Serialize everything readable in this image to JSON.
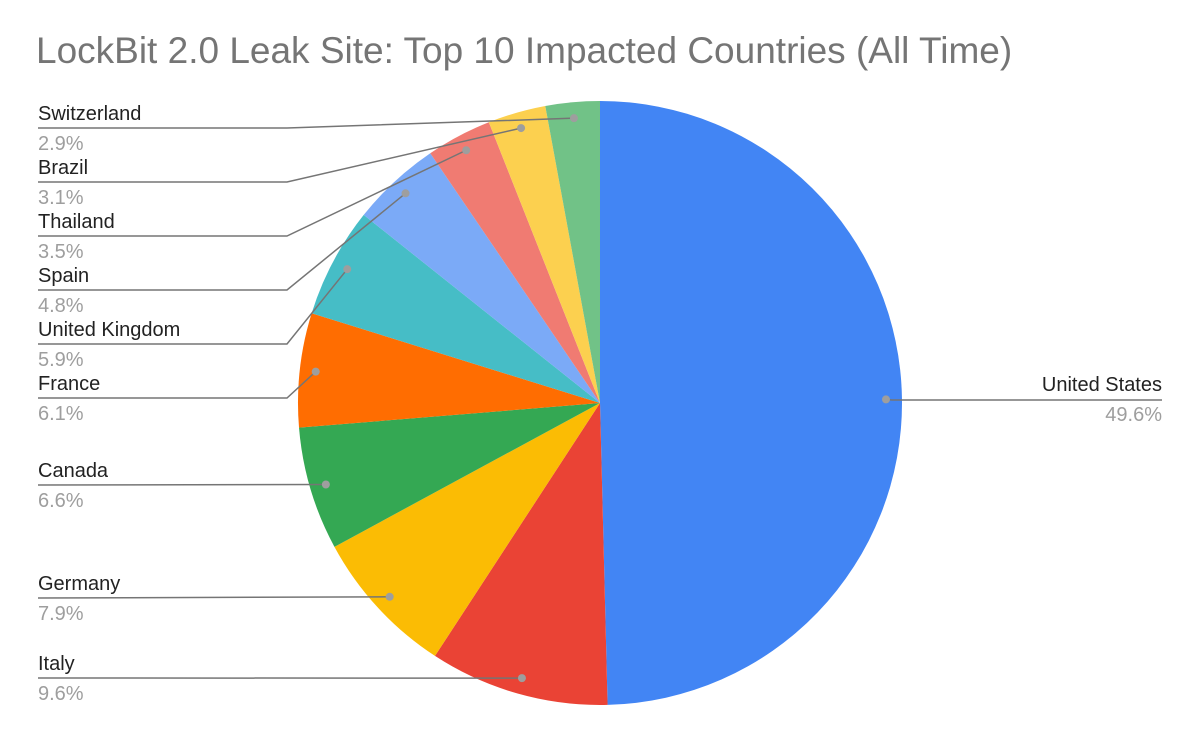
{
  "chart_data": {
    "type": "pie",
    "title": "LockBit 2.0 Leak Site: Top 10 Impacted Countries (All Time)",
    "start_angle": "top, clockwise",
    "legend": "none (leader-line labels)",
    "slices": [
      {
        "label": "United States",
        "value": 49.6,
        "display": "49.6%",
        "color": "#4285F4"
      },
      {
        "label": "Italy",
        "value": 9.6,
        "display": "9.6%",
        "color": "#EA4335"
      },
      {
        "label": "Germany",
        "value": 7.9,
        "display": "7.9%",
        "color": "#FBBC04"
      },
      {
        "label": "Canada",
        "value": 6.6,
        "display": "6.6%",
        "color": "#34A853"
      },
      {
        "label": "France",
        "value": 6.1,
        "display": "6.1%",
        "color": "#FF6D01"
      },
      {
        "label": "United Kingdom",
        "value": 5.9,
        "display": "5.9%",
        "color": "#46BDC6"
      },
      {
        "label": "Spain",
        "value": 4.8,
        "display": "4.8%",
        "color": "#7BAAF7"
      },
      {
        "label": "Thailand",
        "value": 3.5,
        "display": "3.5%",
        "color": "#F07B72"
      },
      {
        "label": "Brazil",
        "value": 3.1,
        "display": "3.1%",
        "color": "#FCD04F"
      },
      {
        "label": "Switzerland",
        "value": 2.9,
        "display": "2.9%",
        "color": "#71C287"
      }
    ]
  }
}
